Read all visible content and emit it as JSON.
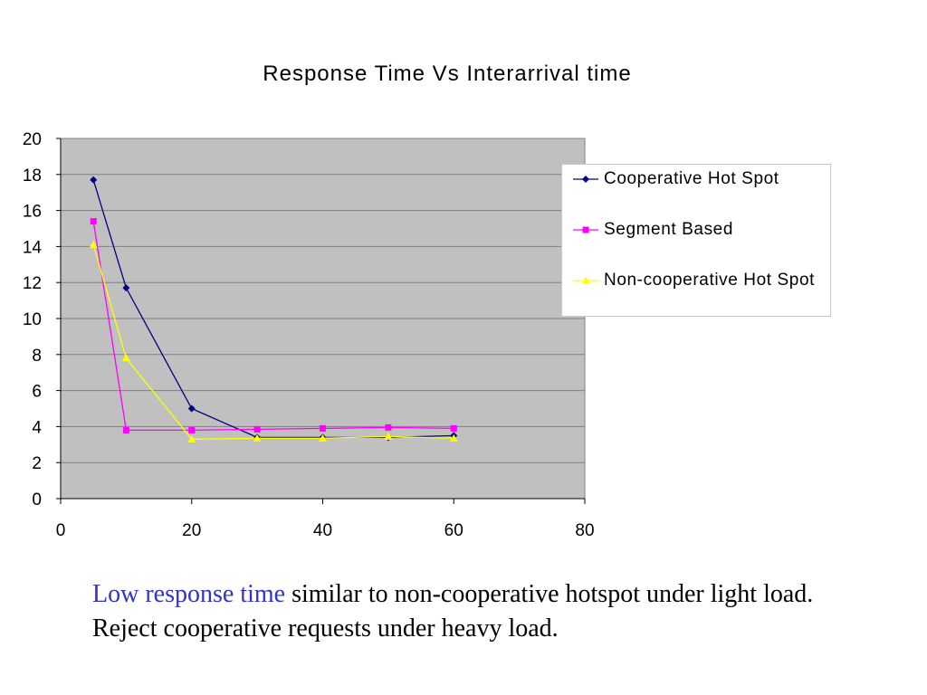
{
  "colors": {
    "plot_background": "#c0c0c0",
    "gridline": "#808080",
    "series_cooperative": "#000080",
    "series_segment": "#ff00ff",
    "series_noncooperative": "#ffff00",
    "caption_highlight": "#3333cc"
  },
  "chart_data": {
    "type": "line",
    "title": "Response Time Vs Interarrival time",
    "xlabel": "",
    "ylabel": "",
    "xlim": [
      0,
      80
    ],
    "ylim": [
      0,
      20
    ],
    "xticks": [
      0,
      20,
      40,
      60,
      80
    ],
    "yticks": [
      0,
      2,
      4,
      6,
      8,
      10,
      12,
      14,
      16,
      18,
      20
    ],
    "grid": true,
    "legend_position": "right",
    "series": [
      {
        "name": "Cooperative Hot Spot",
        "marker": "diamond",
        "color": "#000080",
        "x": [
          5,
          10,
          20,
          30,
          40,
          50,
          60
        ],
        "y": [
          17.7,
          11.7,
          5.0,
          3.4,
          3.4,
          3.4,
          3.5
        ]
      },
      {
        "name": "Segment Based",
        "marker": "square",
        "color": "#ff00ff",
        "x": [
          5,
          10,
          20,
          30,
          40,
          50,
          60
        ],
        "y": [
          15.4,
          3.8,
          3.8,
          3.85,
          3.9,
          3.95,
          3.9
        ]
      },
      {
        "name": "Non-cooperative Hot Spot",
        "marker": "triangle",
        "color": "#ffff00",
        "x": [
          5,
          10,
          20,
          30,
          40,
          50,
          60
        ],
        "y": [
          14.1,
          7.8,
          3.3,
          3.35,
          3.35,
          3.45,
          3.35
        ]
      }
    ]
  },
  "caption": {
    "highlight": "Low response time",
    "rest": " similar to non-cooperative hotspot under light load. Reject cooperative requests under heavy load."
  }
}
